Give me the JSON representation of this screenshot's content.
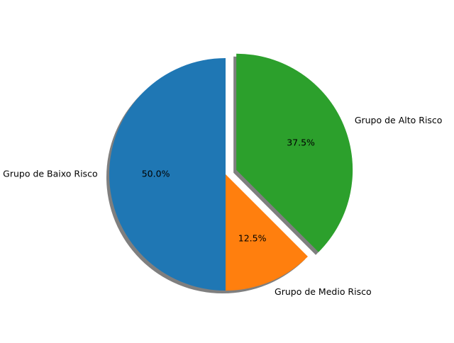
{
  "chart_data": {
    "type": "pie",
    "categories": [
      "Grupo de Baixo Risco",
      "Grupo de Medio Risco",
      "Grupo de Alto Risco"
    ],
    "values": [
      50.0,
      12.5,
      37.5
    ],
    "percent_labels": [
      "50.0%",
      "12.5%",
      "37.5%"
    ],
    "colors": [
      "#1f77b4",
      "#ff7f0e",
      "#2ca02c"
    ],
    "exploded": [
      false,
      false,
      true
    ],
    "start_angle_deg": 90,
    "direction": "counterclockwise",
    "shadow": true,
    "title": ""
  }
}
